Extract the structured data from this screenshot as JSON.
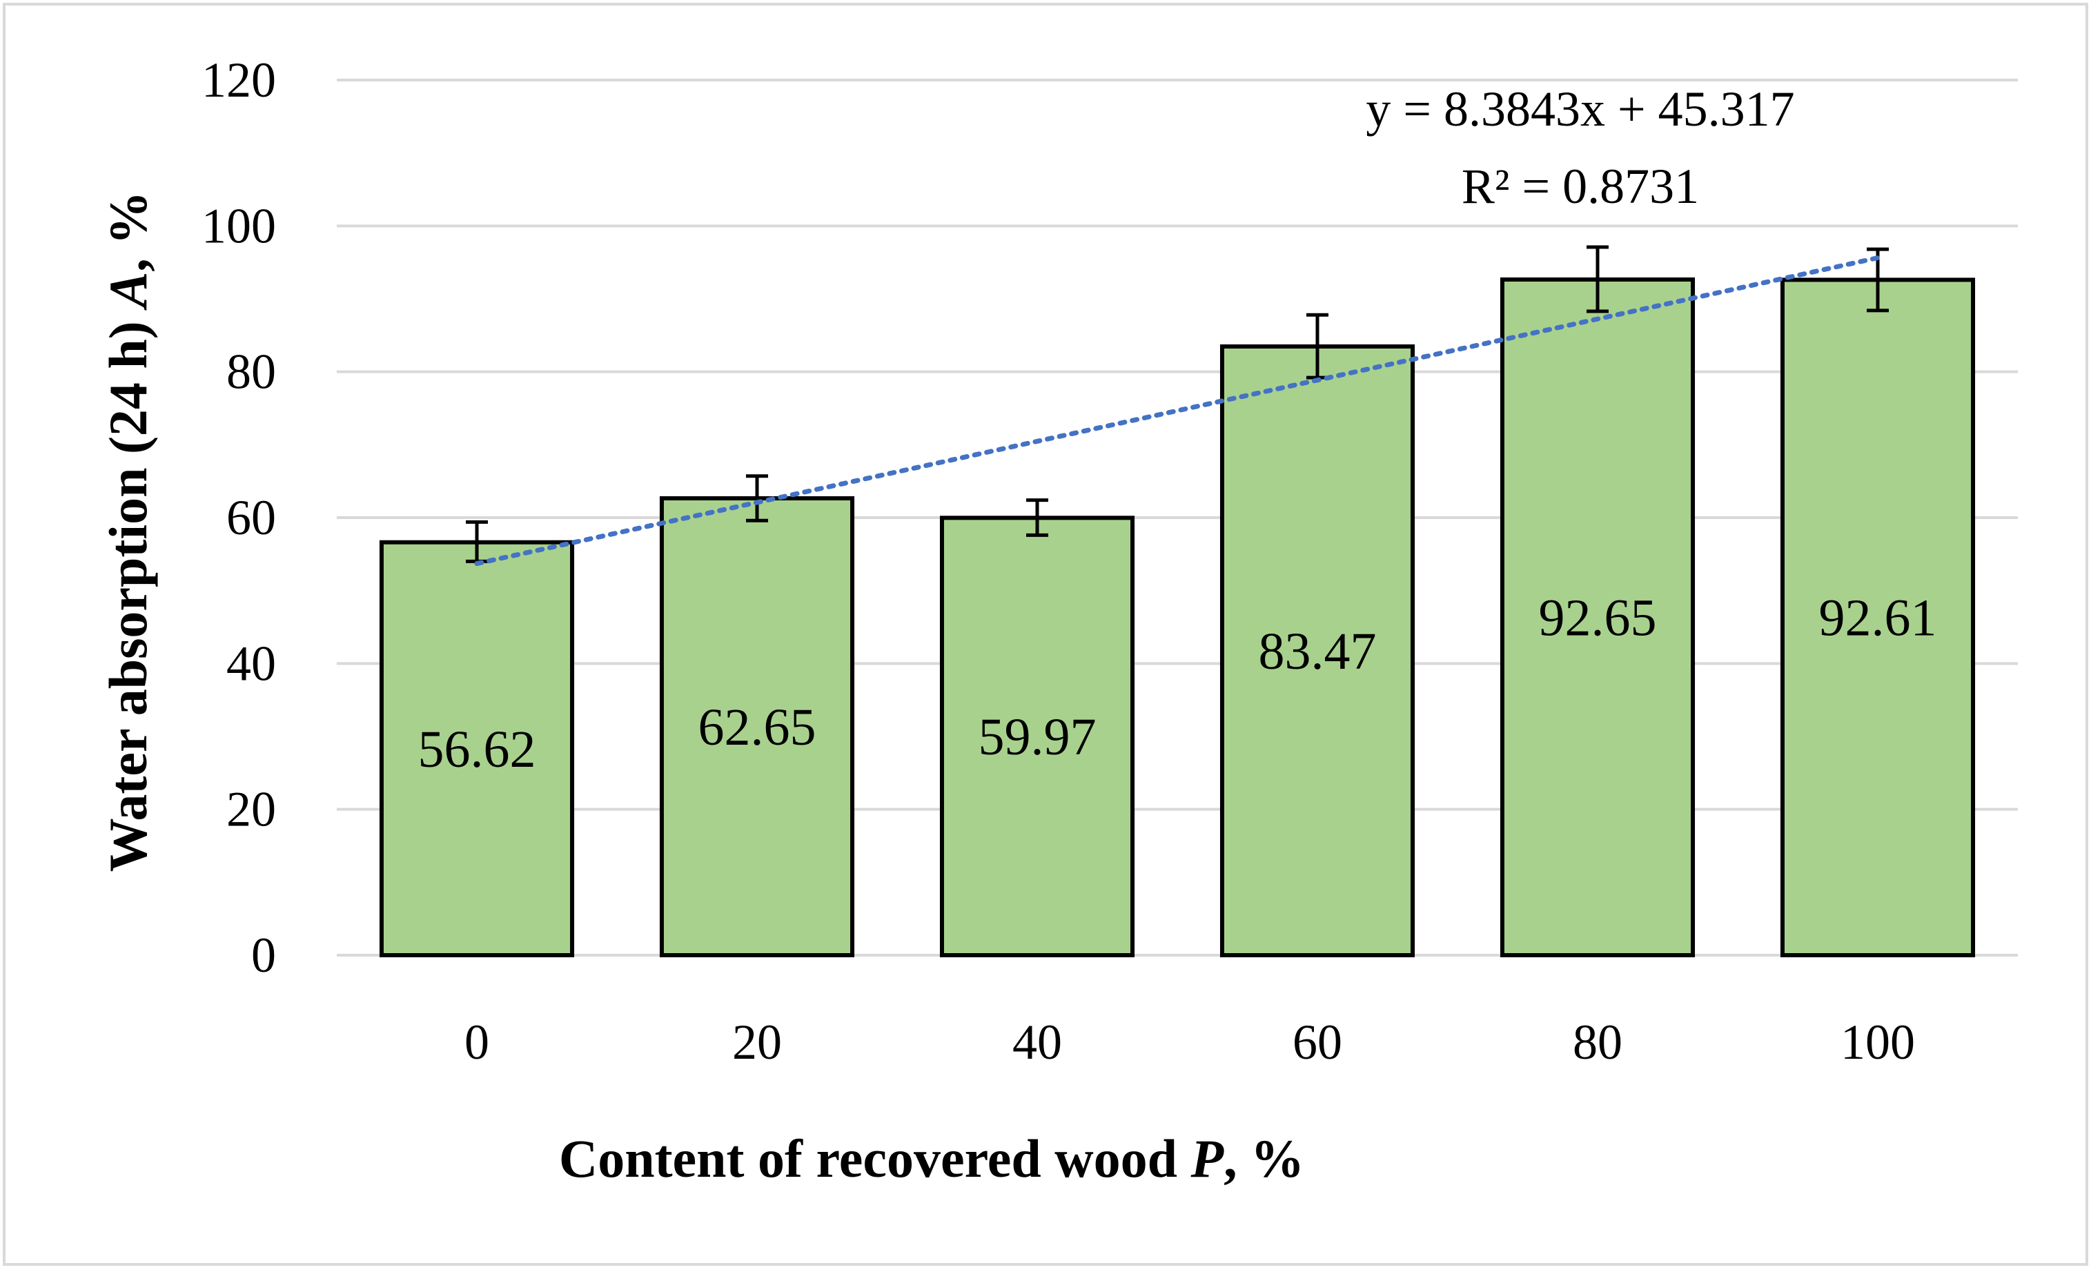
{
  "chart_data": {
    "type": "bar",
    "categories": [
      "0",
      "20",
      "40",
      "60",
      "80",
      "100"
    ],
    "values": [
      56.62,
      62.65,
      59.97,
      83.47,
      92.65,
      92.61
    ],
    "data_labels": [
      "56.62",
      "62.65",
      "59.97",
      "83.47",
      "92.65",
      "92.61"
    ],
    "error_bars": [
      [
        54.0,
        59.4
      ],
      [
        59.6,
        65.7
      ],
      [
        57.6,
        62.4
      ],
      [
        79.2,
        87.8
      ],
      [
        88.3,
        97.1
      ],
      [
        88.4,
        96.8
      ]
    ],
    "ylim": [
      0,
      120
    ],
    "yticks": [
      "0",
      "20",
      "40",
      "60",
      "80",
      "100",
      "120"
    ],
    "xlabel": {
      "main": "Content of recovered wood ",
      "var": "P",
      "unit": ", %"
    },
    "ylabel": {
      "main": "Water absorption (24 h) ",
      "var": "A",
      "unit": ", %"
    },
    "grid": true,
    "trendline": {
      "type": "linear",
      "slope": 8.3843,
      "intercept": 45.317,
      "equation": "y = 8.3843x + 45.317",
      "r_squared": "R² = 0.8731",
      "style": "dotted",
      "color": "#4472C4"
    },
    "colors": {
      "bar_fill": "#A9D18E",
      "bar_stroke": "#000000",
      "grid": "#D9D9D9",
      "trend": "#4472C4"
    }
  }
}
